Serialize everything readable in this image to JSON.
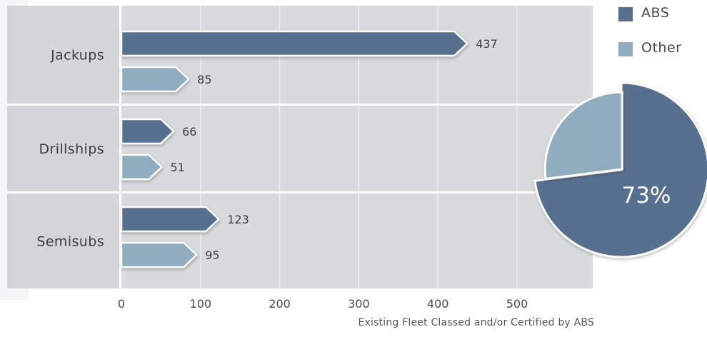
{
  "colors": {
    "abs": "#58708f",
    "other": "#8fadbf",
    "plot_bg": "#d8dadc",
    "category_bg": "#d4d5d6",
    "grid": "#eeeeee"
  },
  "legend": [
    {
      "name": "ABS",
      "color": "#58708f"
    },
    {
      "name": "Other",
      "color": "#8fadbf"
    }
  ],
  "caption": "Existing Fleet Classed and/or Certified by ABS",
  "chart_data": [
    {
      "type": "bar",
      "orientation": "horizontal",
      "categories": [
        "Jackups",
        "Drillships",
        "Semisubs"
      ],
      "series": [
        {
          "name": "ABS",
          "values": [
            437,
            66,
            123
          ]
        },
        {
          "name": "Other",
          "values": [
            85,
            51,
            95
          ]
        }
      ],
      "xlim": [
        0,
        600
      ],
      "xticks": [
        0,
        100,
        200,
        300,
        400,
        500
      ],
      "xlabel": "Existing Fleet Classed and/or Certified by ABS",
      "grid": true,
      "legend_position": "top-right"
    },
    {
      "type": "pie",
      "slices": [
        {
          "name": "ABS",
          "value": 73
        },
        {
          "name": "Other",
          "value": 27
        }
      ],
      "label": "73%"
    }
  ]
}
